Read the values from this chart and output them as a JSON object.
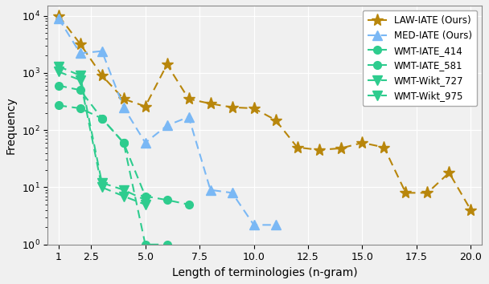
{
  "series": [
    {
      "label": "LAW-IATE (Ours)",
      "color": "#b8860b",
      "marker": "*",
      "markersize": 11,
      "linestyle": "--",
      "linewidth": 1.5,
      "x": [
        1,
        2,
        3,
        4,
        5,
        6,
        7,
        8,
        9,
        10,
        11,
        12,
        13,
        14,
        15,
        16,
        17,
        18,
        19,
        20
      ],
      "y": [
        10000,
        3200,
        900,
        350,
        260,
        1400,
        350,
        290,
        250,
        240,
        150,
        50,
        45,
        48,
        60,
        50,
        8,
        8,
        18,
        4
      ]
    },
    {
      "label": "MED-IATE (Ours)",
      "color": "#7ab8f5",
      "marker": "^",
      "markersize": 9,
      "linestyle": "--",
      "linewidth": 1.5,
      "x": [
        1,
        2,
        3,
        4,
        5,
        6,
        7,
        8,
        9,
        10,
        11
      ],
      "y": [
        9000,
        2200,
        2400,
        250,
        60,
        120,
        170,
        9,
        8,
        2.2,
        2.2
      ]
    },
    {
      "label": "WMT-IATE_414",
      "color": "#2ecc8e",
      "marker": "o",
      "markersize": 7,
      "linestyle": "--",
      "linewidth": 1.5,
      "x": [
        1,
        2,
        3,
        4,
        5,
        6
      ],
      "y": [
        270,
        240,
        160,
        60,
        1,
        1
      ]
    },
    {
      "label": "WMT-IATE_581",
      "color": "#2ecc8e",
      "marker": "o",
      "markersize": 7,
      "linestyle": "--",
      "linewidth": 1.5,
      "x": [
        1,
        2,
        3,
        4,
        5,
        6,
        7
      ],
      "y": [
        600,
        500,
        160,
        60,
        7,
        6,
        5
      ]
    },
    {
      "label": "WMT-Wikt_727",
      "color": "#2ecc8e",
      "marker": "v",
      "markersize": 9,
      "linestyle": "--",
      "linewidth": 1.5,
      "x": [
        1,
        2,
        3,
        4,
        5
      ],
      "y": [
        1050,
        750,
        10,
        7,
        5
      ]
    },
    {
      "label": "WMT-Wikt_975",
      "color": "#2ecc8e",
      "marker": "v",
      "markersize": 9,
      "linestyle": "--",
      "linewidth": 1.5,
      "x": [
        1,
        2,
        3,
        4,
        5
      ],
      "y": [
        1300,
        900,
        12,
        9,
        6
      ]
    }
  ],
  "xlabel": "Length of terminologies (n-gram)",
  "ylabel": "Frequency",
  "xlim": [
    0.5,
    20.5
  ],
  "ylim_log": [
    1,
    15000
  ],
  "xticks": [
    1,
    2.5,
    5.0,
    7.5,
    10.0,
    12.5,
    15.0,
    17.5,
    20.0
  ],
  "xtick_labels": [
    "1",
    "2.5",
    "5.0",
    "7.5",
    "10.0",
    "12.5",
    "15.0",
    "17.5",
    "20.0"
  ],
  "background_color": "#f0f0f0",
  "grid_color": "#ffffff"
}
